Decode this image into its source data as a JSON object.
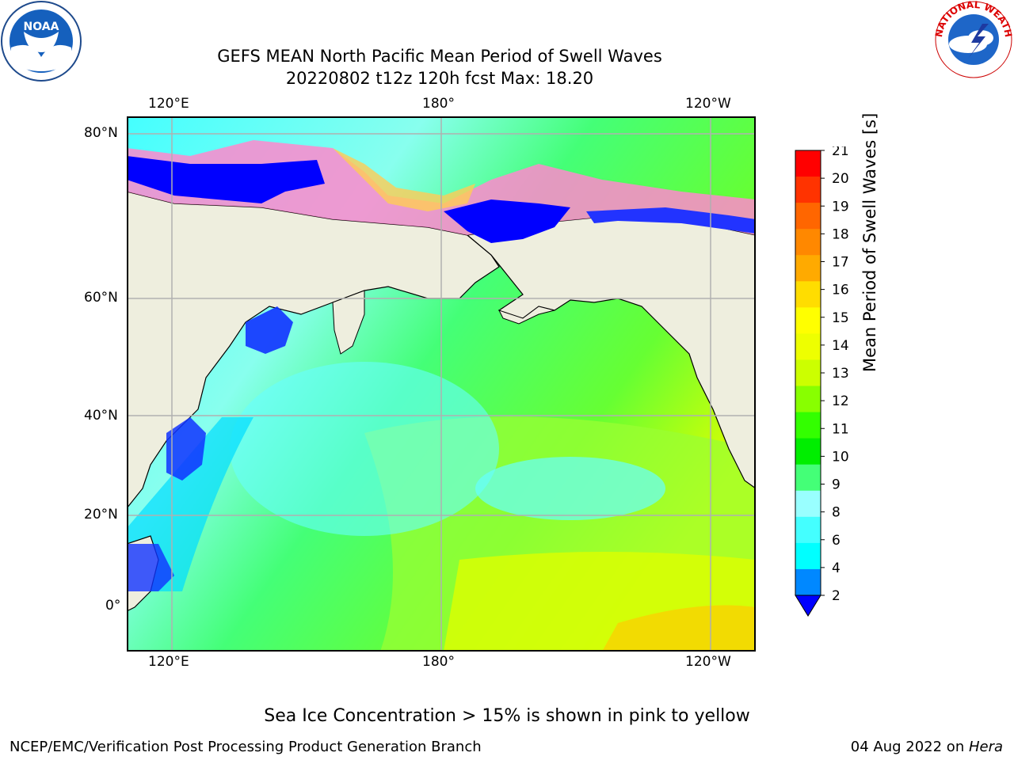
{
  "title": {
    "line1": "GEFS MEAN North Pacific Mean Period of Swell Waves",
    "line2": "20220802 t12z 120h fcst   Max: 18.20"
  },
  "map": {
    "lon_labels": [
      "120°E",
      "180°",
      "120°W"
    ],
    "lat_labels": [
      "80°N",
      "60°N",
      "40°N",
      "20°N",
      "0°"
    ],
    "colors": {
      "land": "#eeeede",
      "ocean_low": "#00ffff",
      "ocean_mid": "#33ff66",
      "ocean_high": "#ffff00",
      "ice": "#ff66cc",
      "frame": "#000000",
      "grid": "#b0b0b0"
    }
  },
  "colorbar": {
    "label": "Mean Period of Swell Waves [s]",
    "ticks": [
      "21",
      "20",
      "19",
      "18",
      "17",
      "16",
      "15",
      "14",
      "13",
      "12",
      "11",
      "10",
      "9",
      "8",
      "6",
      "4",
      "2"
    ],
    "colors": [
      "#ff0000",
      "#ff3300",
      "#ff6600",
      "#ff8800",
      "#ffaa00",
      "#ffdd00",
      "#ffff00",
      "#eeff00",
      "#ccff00",
      "#88ff00",
      "#33ff00",
      "#00ee00",
      "#44ff77",
      "#99ffff",
      "#44ffff",
      "#00ffff",
      "#00ddff",
      "#0088ff"
    ],
    "extend_color": "#0000ff"
  },
  "footer": {
    "note": "Sea Ice Concentration > 15% is shown in pink to yellow",
    "left": "NCEP/EMC/Verification Post Processing Product Generation Branch",
    "right_date": "04 Aug 2022 on ",
    "right_host": "Hera"
  },
  "logos": {
    "left": "noaa-logo",
    "right_text": "NATIONAL WEATHER SERVICE"
  }
}
